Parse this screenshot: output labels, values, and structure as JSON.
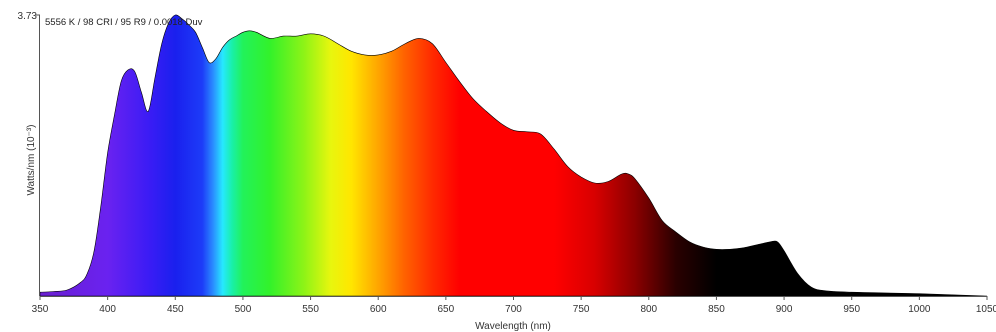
{
  "chart_data": {
    "type": "area",
    "title": "5556 K / 98 CRI / 95 R9 / 0.0018 Duv",
    "xlabel": "Wavelength (nm)",
    "ylabel": "Watts/nm (10⁻³)",
    "xlim": [
      350,
      1050
    ],
    "ylim": [
      0,
      3.73
    ],
    "x_ticks": [
      350,
      400,
      450,
      500,
      550,
      600,
      650,
      700,
      750,
      800,
      850,
      900,
      950,
      1000,
      1050
    ],
    "y_ticks": [
      3.73
    ],
    "grid": false,
    "legend": "none",
    "fill": "visible-spectrum gradient (violet to red), black in the infrared",
    "series": [
      {
        "x": [
          350,
          360,
          370,
          380,
          385,
          390,
          395,
          400,
          405,
          410,
          415,
          420,
          425,
          430,
          435,
          440,
          445,
          450,
          455,
          460,
          465,
          470,
          475,
          480,
          485,
          490,
          495,
          500,
          505,
          510,
          520,
          530,
          540,
          550,
          560,
          570,
          580,
          590,
          600,
          610,
          620,
          630,
          640,
          650,
          660,
          670,
          680,
          690,
          700,
          710,
          720,
          730,
          740,
          750,
          760,
          770,
          780,
          785,
          790,
          800,
          810,
          820,
          830,
          840,
          850,
          860,
          870,
          880,
          890,
          895,
          900,
          910,
          920,
          930,
          950,
          1000,
          1050
        ],
        "values": [
          0.05,
          0.06,
          0.08,
          0.18,
          0.3,
          0.6,
          1.2,
          1.9,
          2.4,
          2.85,
          3.0,
          2.98,
          2.7,
          2.45,
          2.9,
          3.35,
          3.62,
          3.73,
          3.68,
          3.6,
          3.5,
          3.3,
          3.1,
          3.15,
          3.3,
          3.4,
          3.45,
          3.5,
          3.52,
          3.5,
          3.42,
          3.45,
          3.45,
          3.48,
          3.45,
          3.35,
          3.25,
          3.2,
          3.2,
          3.25,
          3.35,
          3.42,
          3.35,
          3.1,
          2.85,
          2.62,
          2.45,
          2.3,
          2.2,
          2.18,
          2.15,
          1.95,
          1.72,
          1.58,
          1.5,
          1.52,
          1.62,
          1.62,
          1.55,
          1.3,
          1.0,
          0.85,
          0.72,
          0.65,
          0.62,
          0.62,
          0.64,
          0.68,
          0.72,
          0.72,
          0.6,
          0.3,
          0.12,
          0.07,
          0.05,
          0.03,
          0.0
        ]
      }
    ]
  }
}
